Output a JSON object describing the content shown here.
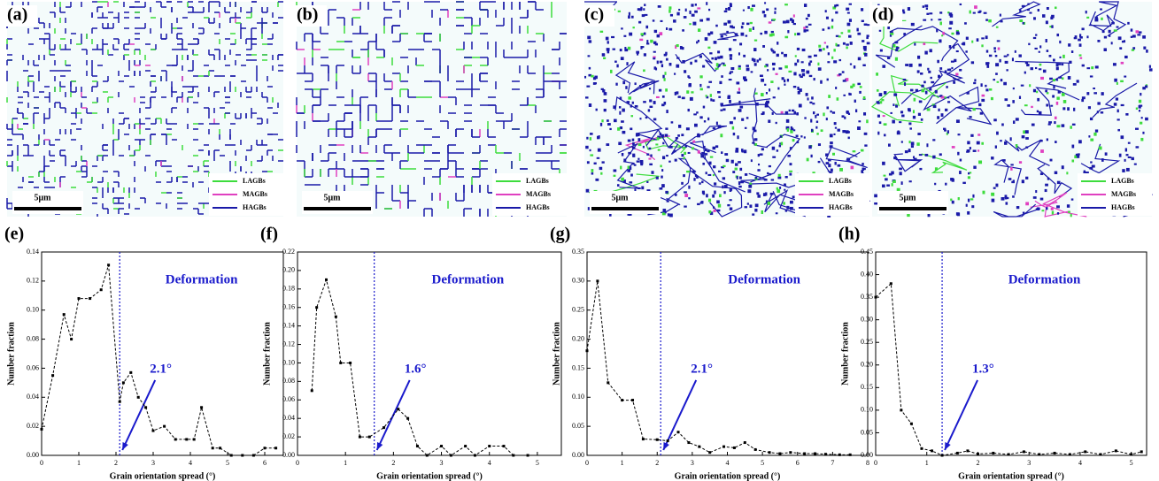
{
  "maps": [
    {
      "label": "(a)",
      "scale_bar": "5μm",
      "legend": [
        {
          "name": "LAGBs",
          "color": "#3ddc3d"
        },
        {
          "name": "MAGBs",
          "color": "#e040c0"
        },
        {
          "name": "HAGBs",
          "color": "#1a1aa8"
        }
      ]
    },
    {
      "label": "(b)",
      "scale_bar": "5μm",
      "legend": [
        {
          "name": "LAGBs",
          "color": "#3ddc3d"
        },
        {
          "name": "MAGBs",
          "color": "#e040c0"
        },
        {
          "name": "HAGBs",
          "color": "#1a1aa8"
        }
      ]
    },
    {
      "label": "(c)",
      "scale_bar": "5μm",
      "legend": [
        {
          "name": "LAGBs",
          "color": "#3ddc3d"
        },
        {
          "name": "MAGBs",
          "color": "#e040c0"
        },
        {
          "name": "HAGBs",
          "color": "#1a1aa8"
        }
      ]
    },
    {
      "label": "(d)",
      "scale_bar": "5μm",
      "legend": [
        {
          "name": "LAGBs",
          "color": "#3ddc3d"
        },
        {
          "name": "MAGBs",
          "color": "#e040c0"
        },
        {
          "name": "HAGBs",
          "color": "#1a1aa8"
        }
      ]
    }
  ],
  "chart_data": [
    {
      "type": "line",
      "panel_label": "(e)",
      "xlabel": "Grain orientation spread (°)",
      "ylabel": "Number fraction",
      "annotation": "Deformation",
      "threshold": {
        "value": 2.1,
        "label": "2.1°"
      },
      "color": "#000000",
      "threshold_color": "#1a1acc",
      "x": [
        0,
        0.3,
        0.6,
        0.8,
        1.0,
        1.3,
        1.6,
        1.8,
        2.1,
        2.2,
        2.4,
        2.6,
        2.8,
        3.0,
        3.3,
        3.6,
        3.9,
        4.1,
        4.3,
        4.6,
        4.8,
        5.1,
        5.4,
        5.7,
        6.0,
        6.3
      ],
      "values": [
        0.018,
        0.055,
        0.097,
        0.08,
        0.108,
        0.108,
        0.114,
        0.131,
        0.037,
        0.05,
        0.057,
        0.04,
        0.033,
        0.017,
        0.02,
        0.011,
        0.011,
        0.011,
        0.033,
        0.005,
        0.005,
        0,
        0,
        0,
        0.005,
        0.005
      ],
      "xlim": [
        0,
        6.5
      ],
      "xticks": [
        0,
        1,
        2,
        3,
        4,
        5,
        6
      ],
      "ylim": [
        0,
        0.14
      ],
      "yticks": [
        {
          "value": 0,
          "label": "0.00"
        },
        {
          "value": 0.02,
          "label": "0.02"
        },
        {
          "value": 0.04,
          "label": "0.04"
        },
        {
          "value": 0.06,
          "label": "0.06"
        },
        {
          "value": 0.08,
          "label": "0.08"
        },
        {
          "value": 0.1,
          "label": "0.10"
        },
        {
          "value": 0.12,
          "label": "0.12"
        },
        {
          "value": 0.14,
          "label": "0.14"
        }
      ]
    },
    {
      "type": "line",
      "panel_label": "(f)",
      "xlabel": "Grain orientation spread (°)",
      "ylabel": "Number fraction",
      "annotation": "Deformation",
      "threshold": {
        "value": 1.6,
        "label": "1.6°"
      },
      "color": "#000000",
      "threshold_color": "#1a1acc",
      "x": [
        0.3,
        0.4,
        0.6,
        0.8,
        0.9,
        1.1,
        1.3,
        1.5,
        1.8,
        2.1,
        2.3,
        2.5,
        2.7,
        3.0,
        3.2,
        3.5,
        3.7,
        4.0,
        4.3,
        4.5,
        4.8
      ],
      "values": [
        0.07,
        0.16,
        0.19,
        0.15,
        0.1,
        0.1,
        0.02,
        0.02,
        0.03,
        0.05,
        0.04,
        0.01,
        0,
        0.01,
        0,
        0.01,
        0,
        0.01,
        0.01,
        0,
        0
      ],
      "xlim": [
        0,
        5.5
      ],
      "xticks": [
        0,
        1,
        2,
        3,
        4,
        5
      ],
      "ylim": [
        0,
        0.22
      ],
      "yticks": [
        {
          "value": 0,
          "label": "0.00"
        },
        {
          "value": 0.02,
          "label": "0.02"
        },
        {
          "value": 0.04,
          "label": "0.04"
        },
        {
          "value": 0.06,
          "label": "0.06"
        },
        {
          "value": 0.08,
          "label": "0.08"
        },
        {
          "value": 0.1,
          "label": "0.10"
        },
        {
          "value": 0.12,
          "label": "0.12"
        },
        {
          "value": 0.14,
          "label": "0.14"
        },
        {
          "value": 0.16,
          "label": "0.16"
        },
        {
          "value": 0.18,
          "label": "0.18"
        },
        {
          "value": 0.2,
          "label": "0.20"
        },
        {
          "value": 0.22,
          "label": "0.22"
        }
      ]
    },
    {
      "type": "line",
      "panel_label": "(g)",
      "xlabel": "Grain orientation spread (°)",
      "ylabel": "Number fraction",
      "annotation": "Deformation",
      "threshold": {
        "value": 2.1,
        "label": "2.1°"
      },
      "color": "#000000",
      "threshold_color": "#1a1acc",
      "x": [
        0,
        0.3,
        0.6,
        1.0,
        1.3,
        1.6,
        2.0,
        2.3,
        2.6,
        2.9,
        3.2,
        3.5,
        3.9,
        4.2,
        4.5,
        4.8,
        5.2,
        5.5,
        5.8,
        6.2,
        6.5,
        6.8,
        7.2,
        7.5
      ],
      "values": [
        0.18,
        0.3,
        0.125,
        0.095,
        0.095,
        0.028,
        0.027,
        0.025,
        0.04,
        0.022,
        0.015,
        0.005,
        0.015,
        0.013,
        0.022,
        0.01,
        0.005,
        0.003,
        0.005,
        0.003,
        0.003,
        0.002,
        0.001,
        0.001
      ],
      "xlim": [
        0,
        8
      ],
      "xticks": [
        0,
        1,
        2,
        3,
        4,
        5,
        6,
        7,
        8
      ],
      "ylim": [
        0,
        0.35
      ],
      "yticks": [
        {
          "value": 0,
          "label": "0.00"
        },
        {
          "value": 0.05,
          "label": "0.05"
        },
        {
          "value": 0.1,
          "label": "0.10"
        },
        {
          "value": 0.15,
          "label": "0.15"
        },
        {
          "value": 0.2,
          "label": "0.20"
        },
        {
          "value": 0.25,
          "label": "0.25"
        },
        {
          "value": 0.3,
          "label": "0.30"
        },
        {
          "value": 0.35,
          "label": "0.35"
        }
      ]
    },
    {
      "type": "line",
      "panel_label": "(h)",
      "xlabel": "Grain orientation spread (°)",
      "ylabel": "Number fraction",
      "annotation": "Deformation",
      "threshold": {
        "value": 1.3,
        "label": "1.3°"
      },
      "color": "#000000",
      "threshold_color": "#1a1acc",
      "x": [
        0,
        0.3,
        0.5,
        0.7,
        0.9,
        1.1,
        1.3,
        1.6,
        1.8,
        2.0,
        2.3,
        2.6,
        2.9,
        3.2,
        3.5,
        3.8,
        4.1,
        4.4,
        4.7,
        5.0,
        5.2
      ],
      "values": [
        0.35,
        0.38,
        0.1,
        0.07,
        0.015,
        0.01,
        0,
        0.005,
        0.01,
        0.003,
        0.005,
        0.002,
        0.008,
        0.002,
        0.005,
        0.002,
        0.008,
        0.002,
        0.01,
        0.002,
        0.008
      ],
      "xlim": [
        0,
        5.3
      ],
      "xticks": [
        0,
        1,
        2,
        3,
        4,
        5
      ],
      "ylim": [
        0,
        0.45
      ],
      "yticks": [
        {
          "value": 0,
          "label": "0.00"
        },
        {
          "value": 0.05,
          "label": "0.05"
        },
        {
          "value": 0.1,
          "label": "0.10"
        },
        {
          "value": 0.15,
          "label": "0.15"
        },
        {
          "value": 0.2,
          "label": "0.20"
        },
        {
          "value": 0.25,
          "label": "0.25"
        },
        {
          "value": 0.3,
          "label": "0.30"
        },
        {
          "value": 0.35,
          "label": "0.35"
        },
        {
          "value": 0.4,
          "label": "0.40"
        },
        {
          "value": 0.45,
          "label": "0.45"
        }
      ]
    }
  ]
}
